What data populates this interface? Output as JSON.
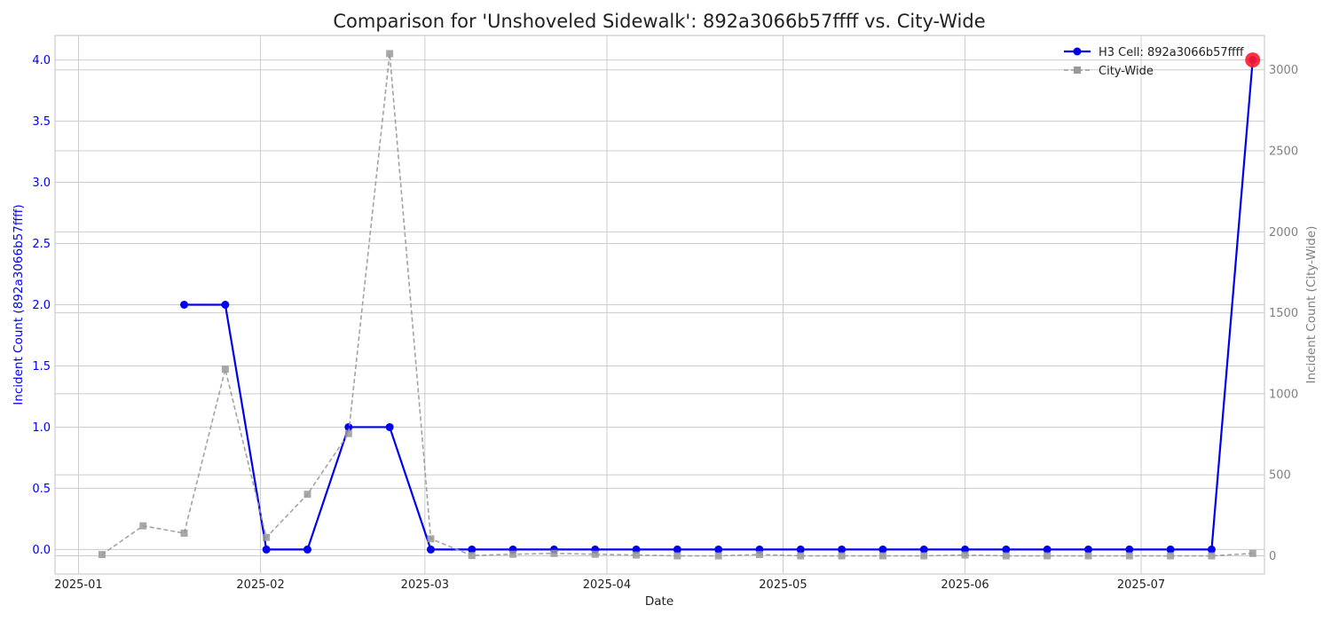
{
  "chart_data": {
    "type": "line",
    "title": "Comparison for 'Unshoveled Sidewalk': 892a3066b57ffff vs. City-Wide",
    "xlabel": "Date",
    "ylabel_left": "Incident Count (892a3066b57ffff)",
    "ylabel_right": "Incident Count (City-Wide)",
    "x_ticks": [
      "2025-01",
      "2025-02",
      "2025-03",
      "2025-04",
      "2025-05",
      "2025-06",
      "2025-07"
    ],
    "y_left_ticks": [
      "0.0",
      "0.5",
      "1.0",
      "1.5",
      "2.0",
      "2.5",
      "3.0",
      "3.5",
      "4.0"
    ],
    "y_right_ticks": [
      "0",
      "500",
      "1000",
      "1500",
      "2000",
      "2500",
      "3000"
    ],
    "xlim": [
      "2024-12-28",
      "2025-07-22"
    ],
    "ylim_left": [
      -0.2,
      4.2
    ],
    "ylim_right": [
      -112,
      3212
    ],
    "grid": true,
    "legend_position": "top-right",
    "colors": {
      "h3": "#0000ee",
      "city": "#999999",
      "highlight": "#ff1a2e",
      "left_axis": "#0000ee",
      "right_axis": "#808080"
    },
    "series": [
      {
        "name": "H3 Cell: 892a3066b57ffff",
        "axis": "left",
        "x": [
          "2025-01-19",
          "2025-01-26",
          "2025-02-02",
          "2025-02-09",
          "2025-02-16",
          "2025-02-23",
          "2025-03-02",
          "2025-03-09",
          "2025-03-16",
          "2025-03-23",
          "2025-03-30",
          "2025-04-06",
          "2025-04-13",
          "2025-04-20",
          "2025-04-27",
          "2025-05-04",
          "2025-05-11",
          "2025-05-18",
          "2025-05-25",
          "2025-06-01",
          "2025-06-08",
          "2025-06-15",
          "2025-06-22",
          "2025-06-29",
          "2025-07-06",
          "2025-07-13",
          "2025-07-20"
        ],
        "y": [
          2,
          2,
          0,
          0,
          1,
          1,
          0,
          0,
          0,
          0,
          0,
          0,
          0,
          0,
          0,
          0,
          0,
          0,
          0,
          0,
          0,
          0,
          0,
          0,
          0,
          0,
          4
        ]
      },
      {
        "name": "City-Wide",
        "axis": "right",
        "x": [
          "2025-01-05",
          "2025-01-12",
          "2025-01-19",
          "2025-01-26",
          "2025-02-02",
          "2025-02-09",
          "2025-02-16",
          "2025-02-23",
          "2025-03-02",
          "2025-03-09",
          "2025-03-16",
          "2025-03-23",
          "2025-03-30",
          "2025-04-06",
          "2025-04-13",
          "2025-04-20",
          "2025-04-27",
          "2025-05-04",
          "2025-05-11",
          "2025-05-18",
          "2025-05-25",
          "2025-06-01",
          "2025-06-08",
          "2025-06-15",
          "2025-06-22",
          "2025-06-29",
          "2025-07-06",
          "2025-07-13",
          "2025-07-20"
        ],
        "y": [
          8,
          185,
          140,
          1152,
          114,
          380,
          755,
          3100,
          105,
          2,
          10,
          15,
          10,
          5,
          0,
          0,
          8,
          0,
          0,
          0,
          0,
          5,
          0,
          0,
          0,
          0,
          0,
          0,
          15
        ]
      }
    ],
    "highlight_point": {
      "series": "H3 Cell: 892a3066b57ffff",
      "x": "2025-07-20",
      "y": 4
    }
  }
}
